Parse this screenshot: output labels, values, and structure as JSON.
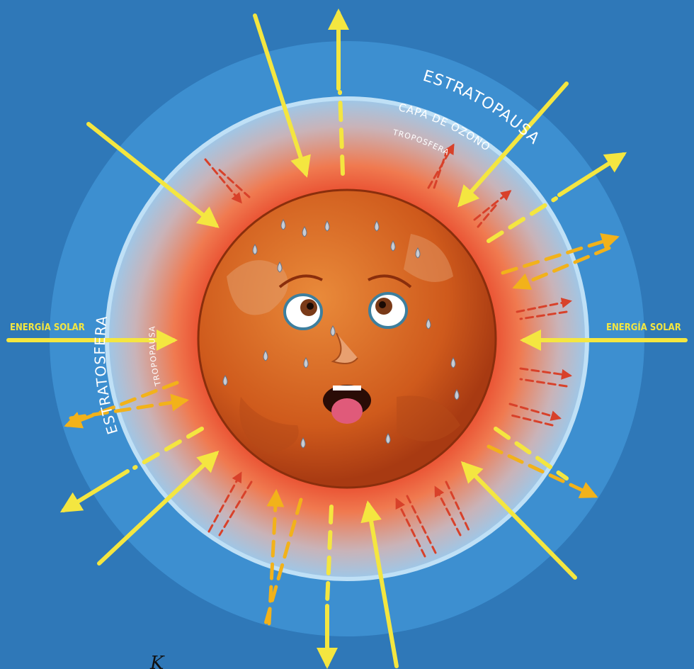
{
  "labels": {
    "stratopause": "ESTRATOPAUSA",
    "ozone_layer": "CAPA DE OZONO",
    "troposphere": "TROPOSFERA",
    "stratosphere": "ESTRATOSFERA",
    "tropopause": "TROPOPAUSA",
    "solar_energy_left": "ENERGÍA SOLAR",
    "solar_energy_right": "ENERGÍA SOLAR",
    "bottom_fragment": "K"
  },
  "colors": {
    "background": "#2f78b8",
    "stratosphere_ring": "#3d8fd0",
    "troposphere_inner": "#e8462a",
    "planet": "#d2621e",
    "solar_arrow": "#f4e640",
    "reflected_arrow": "#f2b21a",
    "heat_arrow": "#d8412a"
  },
  "icons": {
    "planet": "sweating-earth-face-icon",
    "arrow": "arrow-icon"
  }
}
